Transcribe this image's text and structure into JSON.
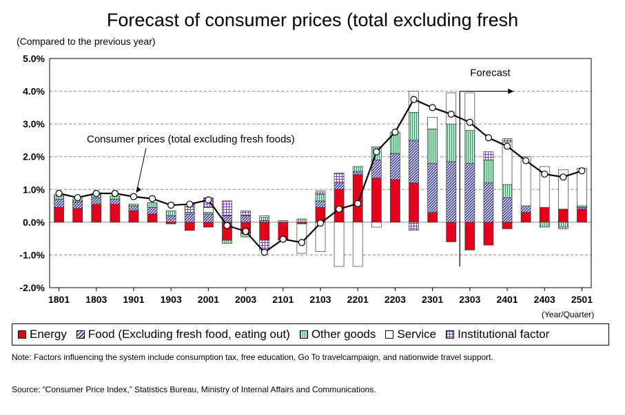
{
  "title": "Forecast of consumer prices (total excluding fresh",
  "y_unit_label": "(Compared to the previous year)",
  "x_unit_label": "(Year/Quarter)",
  "note": "Note: Factors influencing the system include consumption tax, free education, Go To travelcampaign, and nationwide travel support.",
  "source": "Source: “Consumer Price Index,” Statistics Bureau, Ministry of Internal Affairs and Communications.",
  "colors": {
    "energy": "#e3001b",
    "food": "#3a3aa8",
    "other_goods": "#2a9d5c",
    "service": "#ffffff",
    "institutional": "#7b3fa0"
  },
  "chart_data": {
    "type": "bar",
    "stacked": true,
    "y_axis": {
      "min": -2.0,
      "max": 5.0,
      "ticks": [
        "-2.0%",
        "-1.0%",
        "0.0%",
        "1.0%",
        "2.0%",
        "3.0%",
        "4.0%",
        "5.0%"
      ]
    },
    "x_tick_labels": [
      "1801",
      "1803",
      "1901",
      "1903",
      "2001",
      "2003",
      "2101",
      "2103",
      "2201",
      "2203",
      "2301",
      "2303",
      "2401",
      "2403",
      "2501"
    ],
    "categories": [
      "1801",
      "1802",
      "1803",
      "1804",
      "1901",
      "1902",
      "1903",
      "1904",
      "2001",
      "2002",
      "2003",
      "2004",
      "2101",
      "2102",
      "2103",
      "2104",
      "2201",
      "2202",
      "2203",
      "2204",
      "2301",
      "2302",
      "2303",
      "2304",
      "2401",
      "2402",
      "2403",
      "2404",
      "2501"
    ],
    "series": [
      {
        "name": "Energy",
        "key": "energy",
        "values": [
          0.45,
          0.42,
          0.55,
          0.55,
          0.35,
          0.25,
          -0.05,
          -0.25,
          -0.15,
          -0.55,
          -0.35,
          -0.55,
          -0.55,
          -0.05,
          0.45,
          1.0,
          1.45,
          1.35,
          1.3,
          1.2,
          0.3,
          -0.6,
          -0.85,
          -0.7,
          -0.2,
          0.3,
          0.45,
          0.4,
          0.4
        ]
      },
      {
        "name": "Food (Excluding fresh food, eating out)",
        "key": "food",
        "values": [
          0.25,
          0.2,
          0.2,
          0.15,
          0.15,
          0.2,
          0.2,
          0.25,
          0.25,
          0.2,
          0.2,
          0.05,
          0.0,
          0.0,
          0.2,
          0.2,
          0.1,
          0.55,
          0.8,
          1.3,
          1.5,
          1.85,
          1.8,
          1.2,
          0.75,
          0.2,
          0.0,
          0.0,
          0.05
        ]
      },
      {
        "name": "Other goods",
        "key": "other_goods",
        "values": [
          0.1,
          0.05,
          0.1,
          0.1,
          0.05,
          0.15,
          0.15,
          0.05,
          0.05,
          -0.1,
          -0.1,
          0.1,
          0.05,
          0.1,
          0.2,
          0.0,
          0.15,
          0.4,
          0.65,
          0.85,
          1.05,
          1.15,
          1.0,
          0.7,
          0.4,
          0.0,
          -0.15,
          -0.15,
          0.05
        ]
      },
      {
        "name": "Service",
        "key": "service",
        "values": [
          0.05,
          0.05,
          0.0,
          0.0,
          0.0,
          0.0,
          0.0,
          0.0,
          0.15,
          0.0,
          0.0,
          0.05,
          0.0,
          -0.9,
          -0.9,
          -1.35,
          -1.35,
          -0.15,
          0.0,
          0.65,
          0.35,
          0.95,
          1.15,
          0.0,
          1.3,
          1.5,
          1.25,
          1.2,
          1.15
        ]
      },
      {
        "name": "Institutional factor",
        "key": "institutional",
        "values": [
          0.0,
          0.0,
          0.0,
          0.0,
          0.0,
          0.0,
          0.0,
          0.25,
          0.3,
          0.45,
          0.15,
          -0.3,
          0.0,
          0.0,
          0.1,
          0.3,
          0.0,
          0.0,
          0.0,
          -0.25,
          0.0,
          0.0,
          0.0,
          0.25,
          0.1,
          0.0,
          0.0,
          -0.05,
          0.0
        ]
      }
    ],
    "line": {
      "name": "Consumer prices (total excluding fresh foods)",
      "values": [
        0.88,
        0.75,
        0.88,
        0.88,
        0.78,
        0.72,
        0.52,
        0.55,
        0.68,
        -0.1,
        -0.28,
        -0.92,
        -0.52,
        -0.62,
        -0.03,
        0.4,
        0.57,
        2.15,
        2.75,
        3.75,
        3.5,
        3.3,
        3.05,
        2.58,
        2.32,
        1.88,
        1.47,
        1.38,
        1.57
      ]
    },
    "forecast_start_index": 22,
    "annotations": [
      {
        "text": "Consumer prices (total excluding fresh foods)",
        "points_to_index": 4
      },
      {
        "text": "Forecast"
      }
    ],
    "legend_position": "bottom",
    "grid": true
  }
}
